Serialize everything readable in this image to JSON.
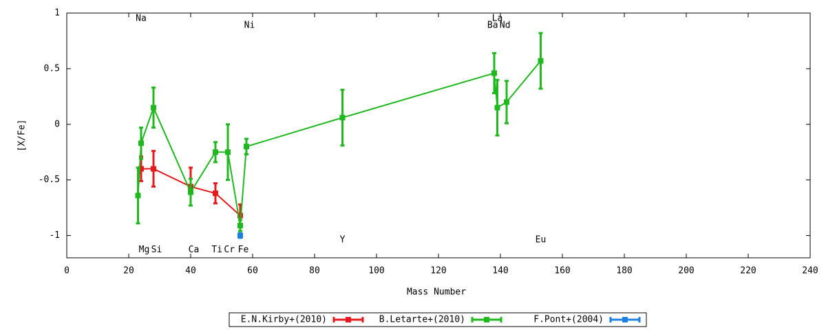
{
  "chart_data": {
    "type": "errorbar-line",
    "xlabel": "Mass Number",
    "ylabel": "[X/Fe]",
    "xlim": [
      0,
      240
    ],
    "ylim": [
      -1.2,
      1
    ],
    "xticks": [
      0,
      20,
      40,
      60,
      80,
      100,
      120,
      140,
      160,
      180,
      200,
      220,
      240
    ],
    "yticks": [
      -1,
      -0.5,
      0,
      0.5,
      1
    ],
    "grid": false,
    "legend": "bottom-outside",
    "series": [
      {
        "name": "E.N.Kirby+(2010)",
        "color": "#e41a1c",
        "x": [
          24,
          28,
          40,
          48,
          56
        ],
        "values": [
          -0.4,
          -0.4,
          -0.56,
          -0.62,
          -0.82
        ],
        "errors": [
          0.11,
          0.16,
          0.17,
          0.09,
          0.1
        ]
      },
      {
        "name": "B.Letarte+(2010)",
        "color": "#1fb81f",
        "x": [
          23,
          24,
          28,
          40,
          48,
          52,
          56,
          58,
          89,
          138,
          139,
          142,
          153
        ],
        "values": [
          -0.64,
          -0.17,
          0.15,
          -0.61,
          -0.25,
          -0.25,
          -0.91,
          -0.2,
          0.06,
          0.46,
          0.15,
          0.2,
          0.57
        ],
        "errors": [
          0.25,
          0.14,
          0.18,
          0.12,
          0.09,
          0.25,
          0.05,
          0.07,
          0.25,
          0.18,
          0.25,
          0.19,
          0.25
        ]
      },
      {
        "name": "F.Pont+(2004)",
        "color": "#1e7fe0",
        "x": [
          56
        ],
        "values": [
          -1.0
        ],
        "errors": [
          0.02
        ]
      }
    ],
    "annotations": [
      {
        "text": "Na",
        "x": 24,
        "y": 0.95
      },
      {
        "text": "Ni",
        "x": 59,
        "y": 0.89
      },
      {
        "text": "La",
        "x": 139,
        "y": 0.95
      },
      {
        "text": "Ba",
        "x": 137.5,
        "y": 0.89
      },
      {
        "text": "Nd",
        "x": 141.5,
        "y": 0.89
      },
      {
        "text": "Mg",
        "x": 25,
        "y": -1.13
      },
      {
        "text": "Si",
        "x": 29,
        "y": -1.13
      },
      {
        "text": "Ca",
        "x": 41,
        "y": -1.13
      },
      {
        "text": "Ti",
        "x": 48.5,
        "y": -1.13
      },
      {
        "text": "Cr",
        "x": 52.5,
        "y": -1.13
      },
      {
        "text": "Fe",
        "x": 57,
        "y": -1.13
      },
      {
        "text": "Y",
        "x": 89,
        "y": -1.04
      },
      {
        "text": "Eu",
        "x": 153,
        "y": -1.04
      }
    ]
  }
}
